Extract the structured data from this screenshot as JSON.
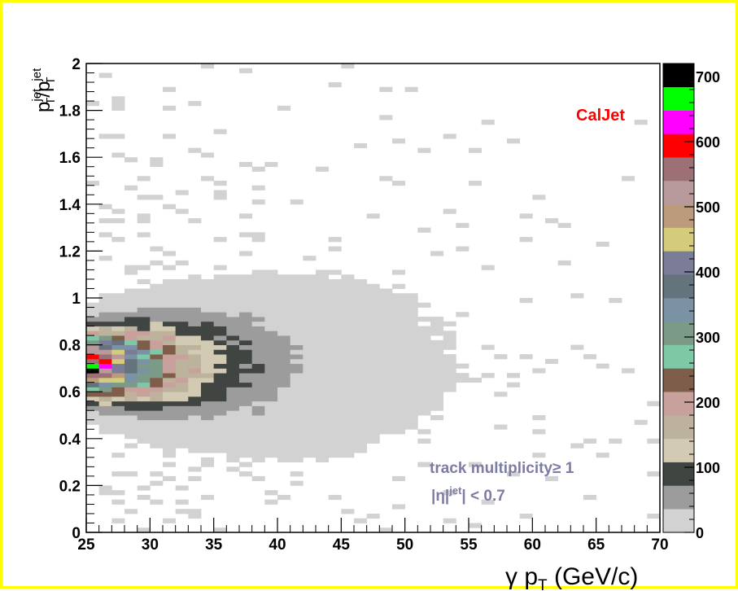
{
  "chart_data": {
    "type": "heatmap",
    "title": "",
    "xlabel": "γ p_T (GeV/c)",
    "xlabel_main": "γ p",
    "xlabel_sub": "T",
    "xlabel_tail": " (GeV/c)",
    "ylabel": "p_T^jet/p_T^jet",
    "ylabel_base": "p",
    "ylabel_sup": "jet",
    "ylabel_sub": "T",
    "ylabel_slash": "/",
    "xlim": [
      25,
      70
    ],
    "ylim": [
      0,
      2
    ],
    "xticks": [
      "25",
      "30",
      "35",
      "40",
      "45",
      "50",
      "55",
      "60",
      "65",
      "70"
    ],
    "yticks": [
      "0",
      "0.2",
      "0.4",
      "0.6",
      "0.8",
      "1",
      "1.2",
      "1.4",
      "1.6",
      "1.8",
      "2"
    ],
    "colorbar": {
      "zlim": [
        0,
        720
      ],
      "labels": [
        "0",
        "100",
        "200",
        "300",
        "400",
        "500",
        "600",
        "700"
      ],
      "colors": [
        "#d2d2d2",
        "#9c9c9c",
        "#414542",
        "#d2cab2",
        "#bdb29c",
        "#c9a19c",
        "#7e5e4a",
        "#7fc8a6",
        "#7c9a88",
        "#7b91a4",
        "#65747c",
        "#7a7c98",
        "#d4cc7c",
        "#bc9a7c",
        "#b89a9c",
        "#9c7074",
        "#ff0000",
        "#ff00ff",
        "#00ff00",
        "#000000"
      ]
    },
    "bin_width": {
      "x": 1,
      "y": 0.02
    },
    "peak": {
      "x": 25.5,
      "y": 0.72,
      "value": 700
    },
    "annotations": {
      "label": "CalJet",
      "track": "track multiplicity",
      "track_cond": "≥ 1",
      "eta": "|η|",
      "eta_sup": "jet",
      "eta_tail": "| < 0.7"
    }
  }
}
